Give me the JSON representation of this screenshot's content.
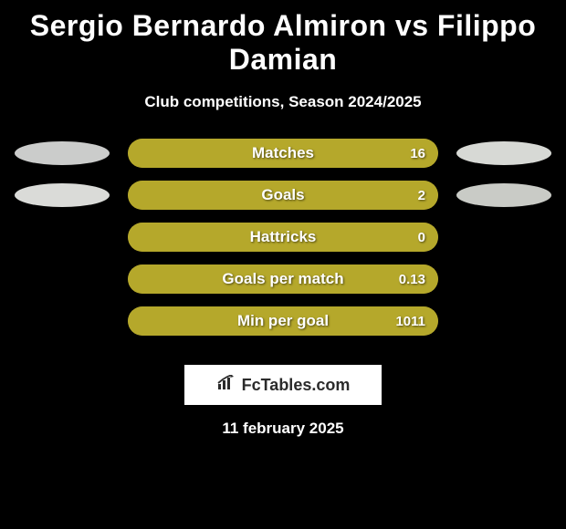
{
  "title": "Sergio Bernardo Almiron vs Filippo Damian",
  "subtitle": "Club competitions, Season 2024/2025",
  "date": "11 february 2025",
  "brand": {
    "text": "FcTables.com",
    "box_bg": "#ffffff",
    "text_color": "#2b2b2b",
    "icon_name": "bar-chart-icon"
  },
  "colors": {
    "page_bg": "#000000",
    "text": "#ffffff",
    "bar_track": "#a29229",
    "bar_fill": "#b5a82b",
    "ellipse_left_row1": "#cbcccb",
    "ellipse_right_row1": "#d7d9d5",
    "ellipse_left_row2": "#dadbd8",
    "ellipse_right_row2": "#c9cbc6"
  },
  "bars": [
    {
      "label": "Matches",
      "value_text": "16",
      "fill_percent": 100,
      "has_left_ellipse": true,
      "has_right_ellipse": true,
      "left_ellipse_color": "#cbcccb",
      "right_ellipse_color": "#d7d9d5"
    },
    {
      "label": "Goals",
      "value_text": "2",
      "fill_percent": 100,
      "has_left_ellipse": true,
      "has_right_ellipse": true,
      "left_ellipse_color": "#dadbd8",
      "right_ellipse_color": "#c9cbc6"
    },
    {
      "label": "Hattricks",
      "value_text": "0",
      "fill_percent": 100,
      "has_left_ellipse": false,
      "has_right_ellipse": false
    },
    {
      "label": "Goals per match",
      "value_text": "0.13",
      "fill_percent": 100,
      "has_left_ellipse": false,
      "has_right_ellipse": false
    },
    {
      "label": "Min per goal",
      "value_text": "1011",
      "fill_percent": 100,
      "has_left_ellipse": false,
      "has_right_ellipse": false
    }
  ]
}
